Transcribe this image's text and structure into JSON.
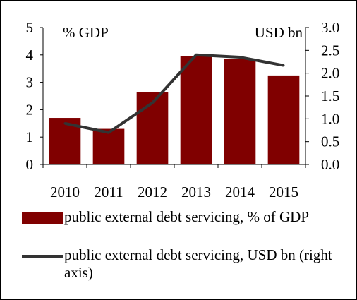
{
  "chart_data": {
    "type": "bar",
    "categories": [
      "2010",
      "2011",
      "2012",
      "2013",
      "2014",
      "2015"
    ],
    "series": [
      {
        "name": "public external debt servicing, % of GDP",
        "type": "bar",
        "axis": "left",
        "color": "#800000",
        "values": [
          1.7,
          1.3,
          2.65,
          3.95,
          3.85,
          3.25
        ]
      },
      {
        "name": "public external debt servicing, USD bn (right axis)",
        "type": "line",
        "axis": "right",
        "color": "#333333",
        "values": [
          0.9,
          0.7,
          1.35,
          2.4,
          2.35,
          2.17
        ]
      }
    ],
    "left_axis": {
      "label": "%  GDP",
      "ylim": [
        0,
        5
      ],
      "ticks": [
        "0",
        "1",
        "2",
        "3",
        "4",
        "5"
      ]
    },
    "right_axis": {
      "label": "USD bn",
      "ylim": [
        0,
        3
      ],
      "ticks": [
        "0.0",
        "0.5",
        "1.0",
        "1.5",
        "2.0",
        "2.5",
        "3.0"
      ]
    },
    "grid": false,
    "legend_position": "bottom"
  }
}
